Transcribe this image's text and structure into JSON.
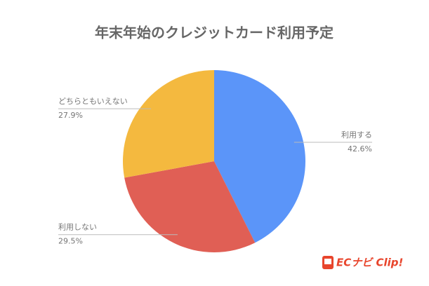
{
  "chart_data": {
    "type": "pie",
    "title": "年末年始のクレジットカード利用予定",
    "categories": [
      "利用する",
      "利用しない",
      "どちらともいえない"
    ],
    "values": [
      42.6,
      29.5,
      27.9
    ],
    "value_labels": [
      "42.6%",
      "29.5%",
      "27.9%"
    ],
    "colors": [
      "#5b95f9",
      "#e05f55",
      "#f4b93f"
    ]
  },
  "logo": "ECナビ Clip!"
}
